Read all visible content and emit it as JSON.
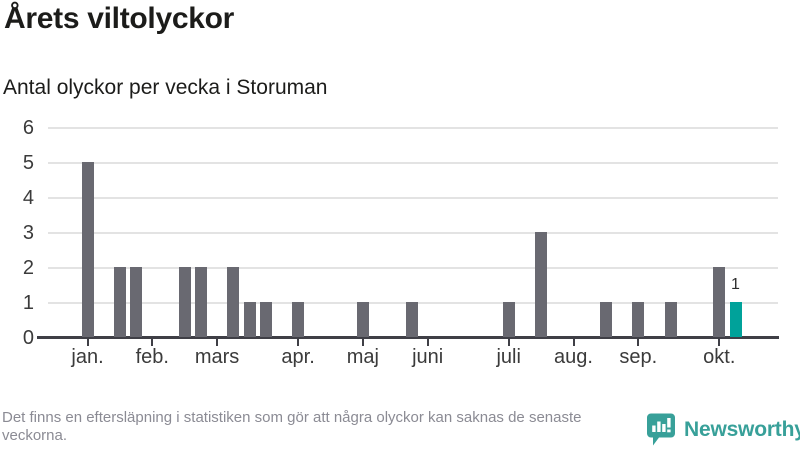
{
  "title": "Årets viltolyckor",
  "subtitle": "Antal olyckor per vecka i Storuman",
  "footer": {
    "note": "Det finns en eftersläpning i statistiken som gör att några olyckor kan saknas de senaste veckorna.",
    "brand": "Newsworthy"
  },
  "colors": {
    "bar": "#696971",
    "highlight": "#00a29a",
    "grid": "#e3e3e3",
    "axis": "#3f3f46",
    "axis_text": "#3b3b3b",
    "text_dark": "#1c1c1a",
    "text_muted": "#8b8b94",
    "brand_teal": "#38a099"
  },
  "chart_data": {
    "type": "bar",
    "title": "Årets viltolyckor",
    "subtitle": "Antal olyckor per vecka i Storuman",
    "xlabel": "",
    "ylabel": "",
    "ylim": [
      0,
      6
    ],
    "yticks": [
      0,
      1,
      2,
      3,
      4,
      5,
      6
    ],
    "grid": "horizontal",
    "legend": null,
    "x_unit": "vecka (week of year)",
    "months": [
      {
        "label": "jan.",
        "week": 1
      },
      {
        "label": "feb.",
        "week": 5
      },
      {
        "label": "mars",
        "week": 9
      },
      {
        "label": "apr.",
        "week": 14
      },
      {
        "label": "maj",
        "week": 18
      },
      {
        "label": "juni",
        "week": 22
      },
      {
        "label": "juli",
        "week": 27
      },
      {
        "label": "aug.",
        "week": 31
      },
      {
        "label": "sep.",
        "week": 35
      },
      {
        "label": "okt.",
        "week": 40
      }
    ],
    "weeks": [
      {
        "week": 1,
        "value": 5
      },
      {
        "week": 3,
        "value": 2
      },
      {
        "week": 4,
        "value": 2
      },
      {
        "week": 7,
        "value": 2
      },
      {
        "week": 8,
        "value": 2
      },
      {
        "week": 10,
        "value": 2
      },
      {
        "week": 11,
        "value": 1
      },
      {
        "week": 12,
        "value": 1
      },
      {
        "week": 14,
        "value": 1
      },
      {
        "week": 18,
        "value": 1
      },
      {
        "week": 21,
        "value": 1
      },
      {
        "week": 27,
        "value": 1
      },
      {
        "week": 29,
        "value": 3
      },
      {
        "week": 33,
        "value": 1
      },
      {
        "week": 35,
        "value": 1
      },
      {
        "week": 37,
        "value": 1
      },
      {
        "week": 40,
        "value": 2
      },
      {
        "week": 41,
        "value": 1,
        "highlight": true,
        "label": "1"
      }
    ]
  }
}
